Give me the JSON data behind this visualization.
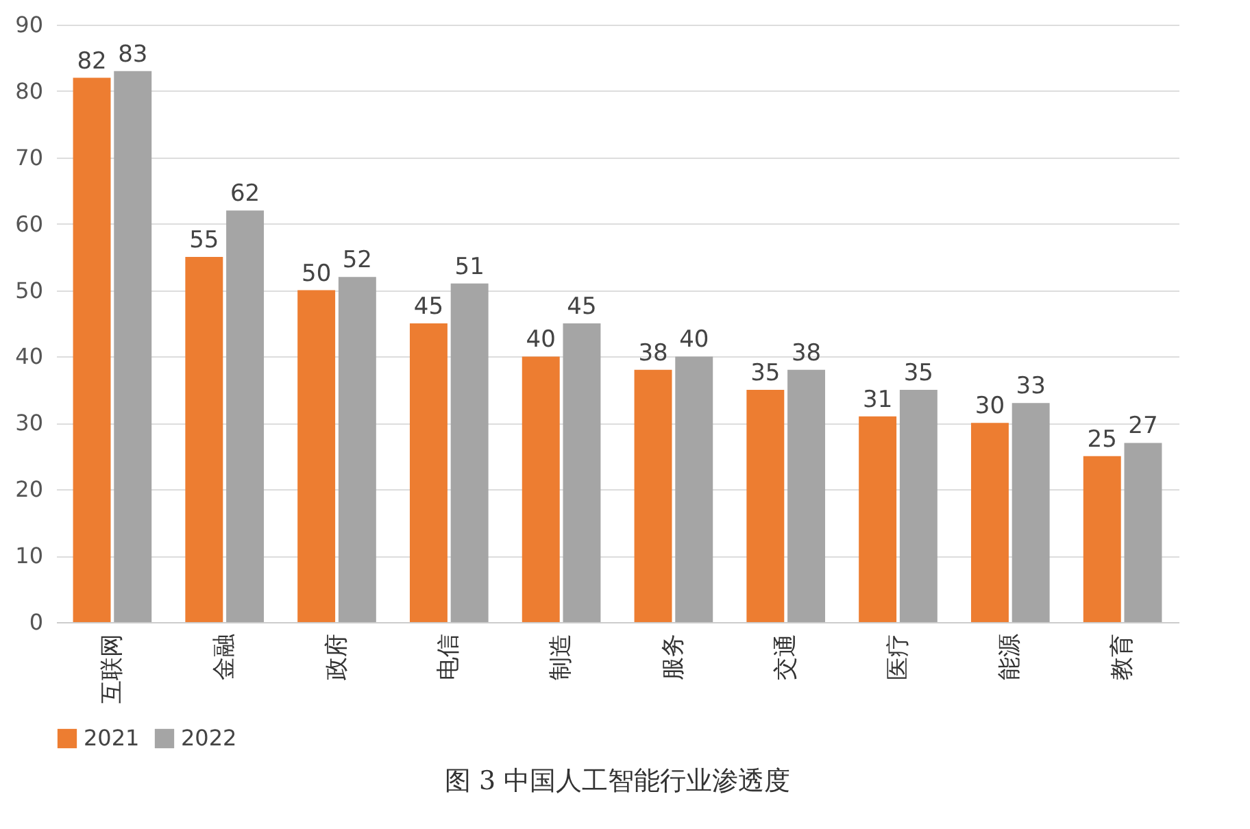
{
  "chart_data": {
    "type": "bar",
    "title": "图 3 中国人工智能行业渗透度",
    "categories": [
      "互联网",
      "金融",
      "政府",
      "电信",
      "制造",
      "服务",
      "交通",
      "医疗",
      "能源",
      "教育"
    ],
    "series": [
      {
        "name": "2021",
        "color": "#ed7d31",
        "values": [
          82,
          55,
          50,
          45,
          40,
          38,
          35,
          31,
          30,
          25
        ]
      },
      {
        "name": "2022",
        "color": "#a5a5a5",
        "values": [
          83,
          62,
          52,
          51,
          45,
          40,
          38,
          35,
          33,
          27
        ]
      }
    ],
    "ylim": [
      0,
      90
    ],
    "yticks": [
      0,
      10,
      20,
      30,
      40,
      50,
      60,
      70,
      80,
      90
    ],
    "grid": "y",
    "legend": "bottom",
    "data_labels": true
  }
}
